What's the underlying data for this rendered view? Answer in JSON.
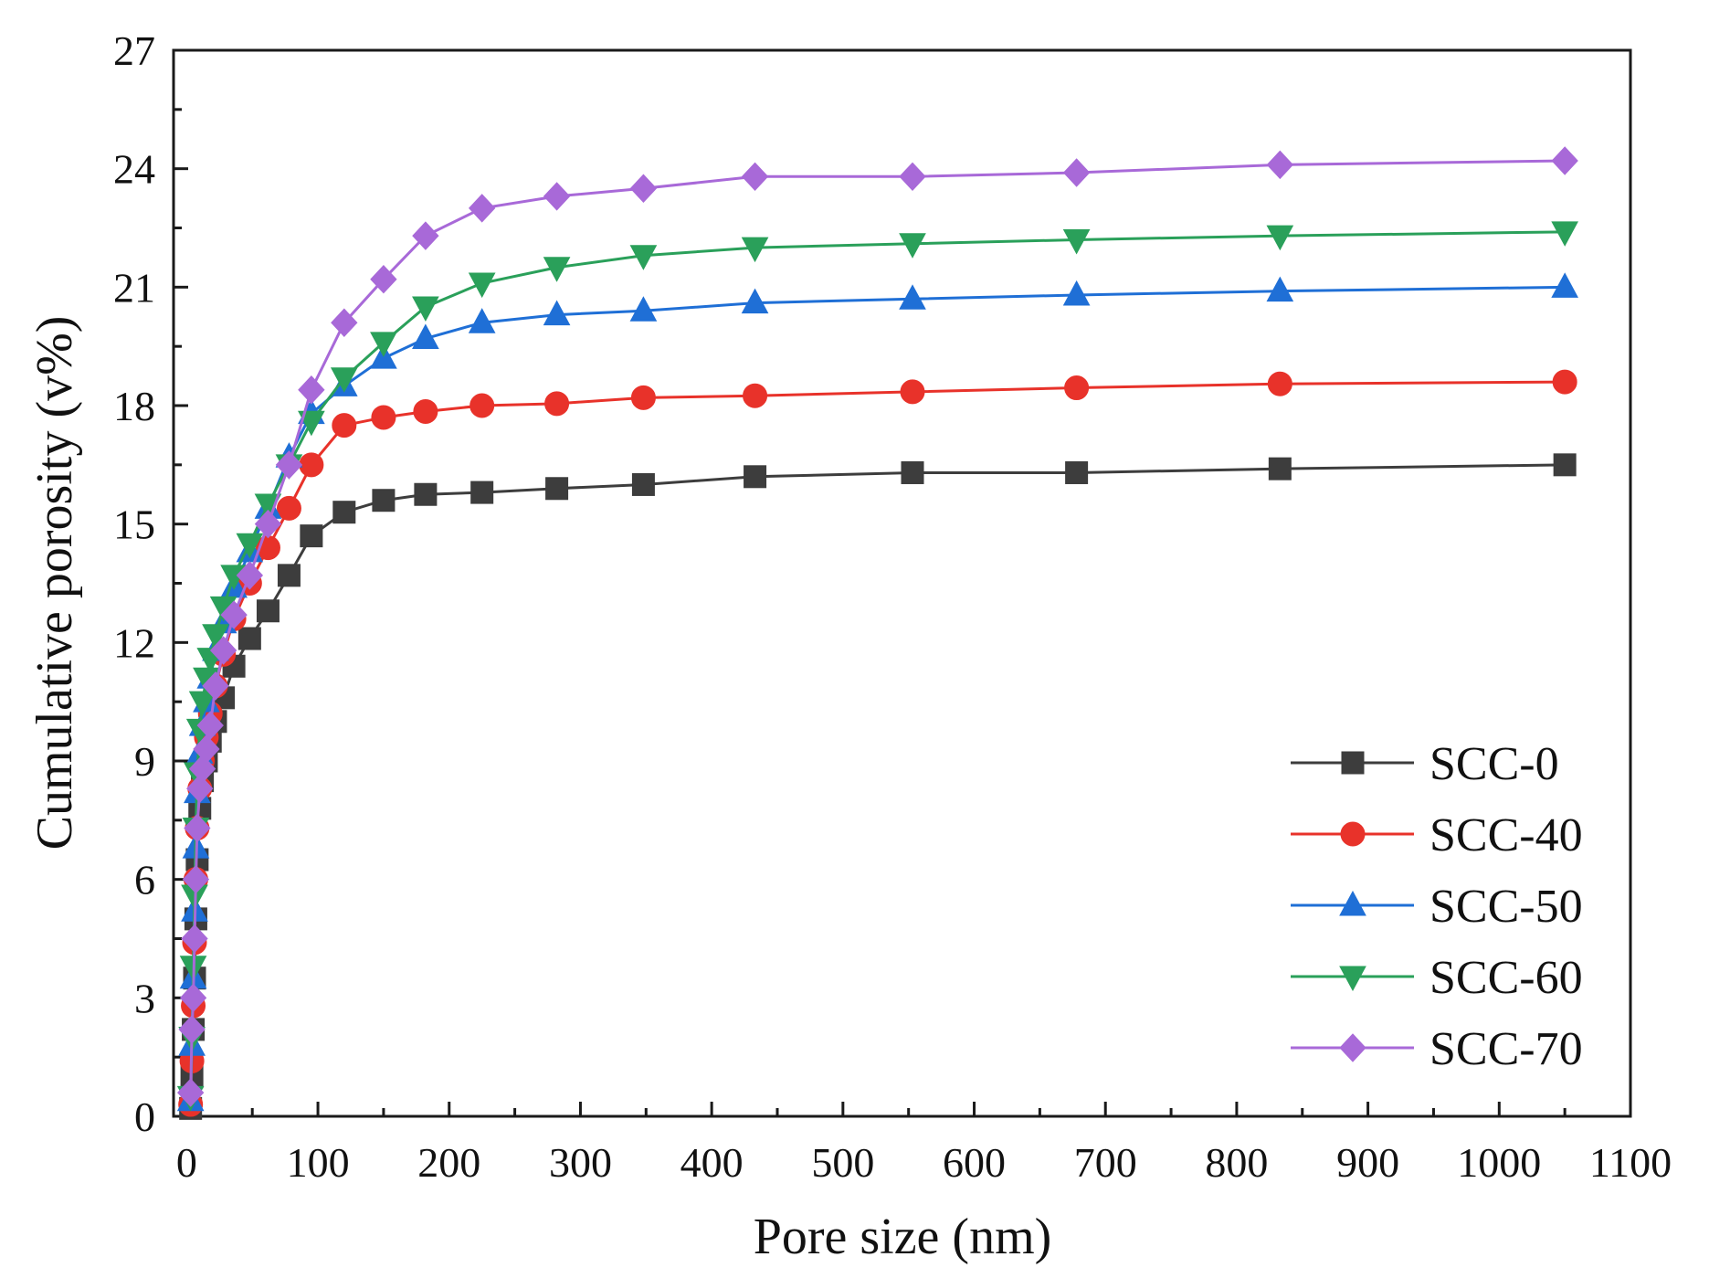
{
  "chart_data": {
    "type": "line",
    "title": "",
    "xlabel": "Pore size (nm)",
    "ylabel": "Cumulative porosity (v%)",
    "xlim": [
      -10,
      1100
    ],
    "ylim": [
      0,
      27
    ],
    "xticks": [
      0,
      100,
      200,
      300,
      400,
      500,
      600,
      700,
      800,
      900,
      1000,
      1100
    ],
    "yticks": [
      0,
      3,
      6,
      9,
      12,
      15,
      18,
      21,
      24,
      27
    ],
    "grid": false,
    "legend_position": "bottom-right",
    "x": [
      3,
      4,
      5,
      6,
      7,
      8,
      10,
      12,
      15,
      18,
      22,
      28,
      36,
      48,
      62,
      78,
      95,
      120,
      150,
      182,
      225,
      282,
      348,
      433,
      553,
      678,
      833,
      1050
    ],
    "series": [
      {
        "name": "SCC-0",
        "color": "#3d3d3d",
        "marker": "square",
        "values": [
          0.2,
          1.0,
          2.2,
          3.5,
          5.0,
          6.5,
          7.8,
          8.5,
          9.0,
          9.5,
          10.0,
          10.6,
          11.4,
          12.1,
          12.8,
          13.7,
          14.7,
          15.3,
          15.6,
          15.75,
          15.8,
          15.9,
          16.0,
          16.2,
          16.3,
          16.3,
          16.4,
          16.5
        ]
      },
      {
        "name": "SCC-40",
        "color": "#e8322a",
        "marker": "circle",
        "values": [
          0.3,
          1.4,
          2.8,
          4.4,
          6.0,
          7.3,
          8.3,
          9.0,
          9.6,
          10.2,
          10.9,
          11.7,
          12.6,
          13.5,
          14.4,
          15.4,
          16.5,
          17.5,
          17.7,
          17.85,
          18.0,
          18.05,
          18.2,
          18.25,
          18.35,
          18.45,
          18.55,
          18.6
        ]
      },
      {
        "name": "SCC-50",
        "color": "#1f6fd6",
        "marker": "triangle-up",
        "values": [
          0.4,
          1.8,
          3.5,
          5.2,
          6.8,
          8.2,
          9.2,
          9.9,
          10.5,
          11.1,
          11.8,
          12.5,
          13.4,
          14.3,
          15.4,
          16.7,
          17.8,
          18.5,
          19.2,
          19.7,
          20.1,
          20.3,
          20.4,
          20.6,
          20.7,
          20.8,
          20.9,
          21.0
        ]
      },
      {
        "name": "SCC-60",
        "color": "#2aa05a",
        "marker": "triangle-down",
        "values": [
          0.5,
          2.0,
          3.8,
          5.6,
          7.3,
          8.7,
          9.8,
          10.5,
          11.1,
          11.6,
          12.2,
          12.9,
          13.7,
          14.5,
          15.5,
          16.5,
          17.6,
          18.7,
          19.6,
          20.5,
          21.1,
          21.5,
          21.8,
          22.0,
          22.1,
          22.2,
          22.3,
          22.4
        ]
      },
      {
        "name": "SCC-70",
        "color": "#a869d8",
        "marker": "diamond",
        "values": [
          0.6,
          2.2,
          3.0,
          4.5,
          6.0,
          7.3,
          8.3,
          8.8,
          9.3,
          9.9,
          10.9,
          11.8,
          12.7,
          13.7,
          15.0,
          16.5,
          18.4,
          20.1,
          21.2,
          22.3,
          23.0,
          23.3,
          23.5,
          23.8,
          23.8,
          23.9,
          24.1,
          24.2
        ]
      }
    ]
  }
}
